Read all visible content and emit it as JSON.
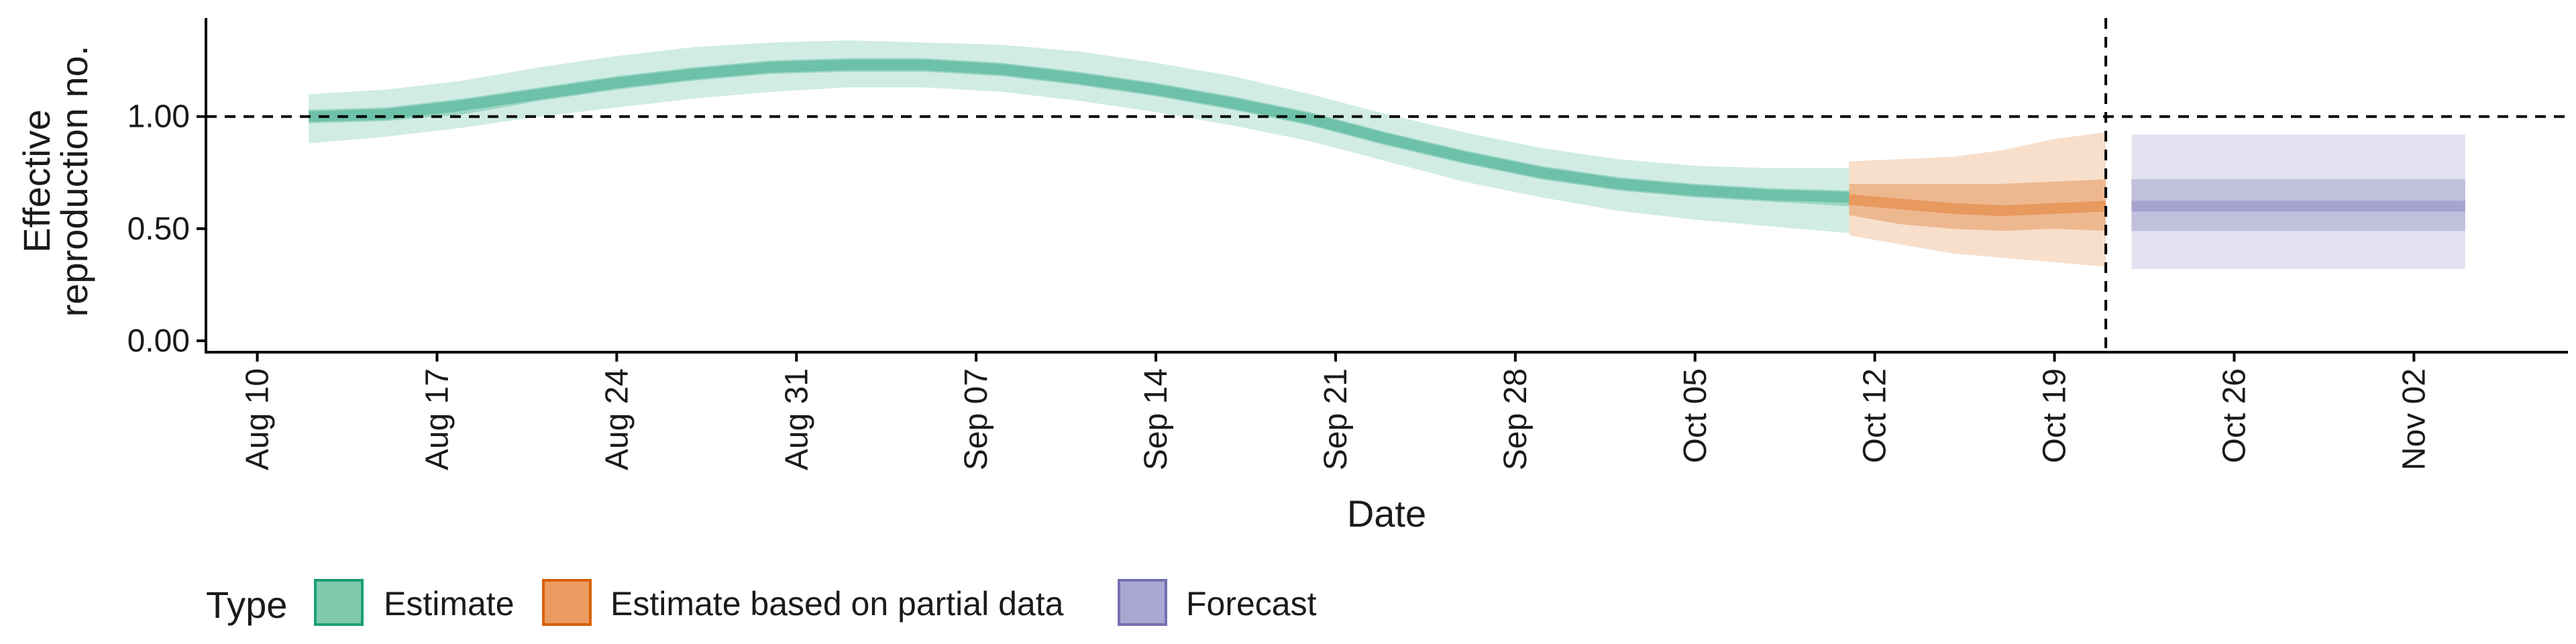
{
  "colors": {
    "estimate": "#1b9e77",
    "partial": "#d95f02",
    "forecast": "#7570b3",
    "estimate_key": "#7fc9ac",
    "partial_key": "#eb9c60",
    "forecast_key": "#aaa7d2"
  },
  "chart_data": {
    "type": "area",
    "xlabel": "Date",
    "ylabel": [
      "Effective",
      "reproduction no."
    ],
    "x_start": "2020-08-08",
    "x_end": "2020-11-08",
    "ylim": [
      0,
      1.4
    ],
    "y_ticks": [
      0,
      0.5,
      1.0
    ],
    "y_tick_labels": [
      "0.00",
      "0.50",
      "1.00"
    ],
    "x_ticks": [
      "2020-08-10",
      "2020-08-17",
      "2020-08-24",
      "2020-08-31",
      "2020-09-07",
      "2020-09-14",
      "2020-09-21",
      "2020-09-28",
      "2020-10-05",
      "2020-10-12",
      "2020-10-19",
      "2020-10-26",
      "2020-11-02"
    ],
    "x_tick_labels": [
      "Aug 10",
      "Aug 17",
      "Aug 24",
      "Aug 31",
      "Sep 07",
      "Sep 14",
      "Sep 21",
      "Sep 28",
      "Oct 05",
      "Oct 12",
      "Oct 19",
      "Oct 26",
      "Nov 02"
    ],
    "hline": 1.0,
    "vline": "2020-10-21",
    "grid": false,
    "legend_position": "bottom",
    "legend_title": "Type",
    "series": [
      {
        "name": "Estimate",
        "color": "#1b9e77",
        "x": [
          "2020-08-12",
          "2020-08-15",
          "2020-08-18",
          "2020-08-21",
          "2020-08-24",
          "2020-08-27",
          "2020-08-30",
          "2020-09-02",
          "2020-09-05",
          "2020-09-08",
          "2020-09-11",
          "2020-09-14",
          "2020-09-17",
          "2020-09-20",
          "2020-09-23",
          "2020-09-26",
          "2020-09-29",
          "2020-10-02",
          "2020-10-05",
          "2020-10-08",
          "2020-10-11"
        ],
        "median": [
          1.0,
          1.01,
          1.05,
          1.1,
          1.15,
          1.19,
          1.22,
          1.23,
          1.23,
          1.21,
          1.17,
          1.12,
          1.06,
          0.99,
          0.9,
          0.82,
          0.75,
          0.7,
          0.67,
          0.65,
          0.64
        ],
        "lower_50": [
          0.97,
          0.98,
          1.01,
          1.07,
          1.12,
          1.16,
          1.19,
          1.2,
          1.2,
          1.18,
          1.14,
          1.09,
          1.03,
          0.96,
          0.87,
          0.79,
          0.72,
          0.67,
          0.64,
          0.62,
          0.6
        ],
        "upper_50": [
          1.03,
          1.04,
          1.08,
          1.13,
          1.18,
          1.22,
          1.25,
          1.26,
          1.26,
          1.24,
          1.2,
          1.15,
          1.09,
          1.02,
          0.93,
          0.85,
          0.78,
          0.73,
          0.7,
          0.68,
          0.67
        ],
        "lower_90": [
          0.88,
          0.91,
          0.95,
          1.0,
          1.04,
          1.08,
          1.11,
          1.13,
          1.13,
          1.11,
          1.07,
          1.02,
          0.96,
          0.89,
          0.8,
          0.71,
          0.64,
          0.58,
          0.54,
          0.51,
          0.48
        ],
        "upper_90": [
          1.1,
          1.12,
          1.16,
          1.22,
          1.27,
          1.31,
          1.33,
          1.34,
          1.33,
          1.32,
          1.29,
          1.24,
          1.18,
          1.1,
          1.01,
          0.93,
          0.86,
          0.81,
          0.78,
          0.77,
          0.77
        ]
      },
      {
        "name": "Estimate based on partial data",
        "color": "#d95f02",
        "x": [
          "2020-10-11",
          "2020-10-13",
          "2020-10-15",
          "2020-10-17",
          "2020-10-19",
          "2020-10-21"
        ],
        "median": [
          0.63,
          0.61,
          0.59,
          0.58,
          0.59,
          0.6
        ],
        "lower_50": [
          0.56,
          0.52,
          0.5,
          0.49,
          0.5,
          0.49
        ],
        "upper_50": [
          0.7,
          0.7,
          0.7,
          0.7,
          0.71,
          0.72
        ],
        "lower_90": [
          0.47,
          0.43,
          0.39,
          0.37,
          0.35,
          0.33
        ],
        "upper_90": [
          0.8,
          0.81,
          0.82,
          0.85,
          0.9,
          0.93
        ]
      },
      {
        "name": "Forecast",
        "color": "#7570b3",
        "x": [
          "2020-10-22",
          "2020-11-04"
        ],
        "median": [
          0.6,
          0.6
        ],
        "lower_50": [
          0.49,
          0.49
        ],
        "upper_50": [
          0.72,
          0.72
        ],
        "lower_90": [
          0.32,
          0.32
        ],
        "upper_90": [
          0.92,
          0.92
        ]
      }
    ]
  }
}
